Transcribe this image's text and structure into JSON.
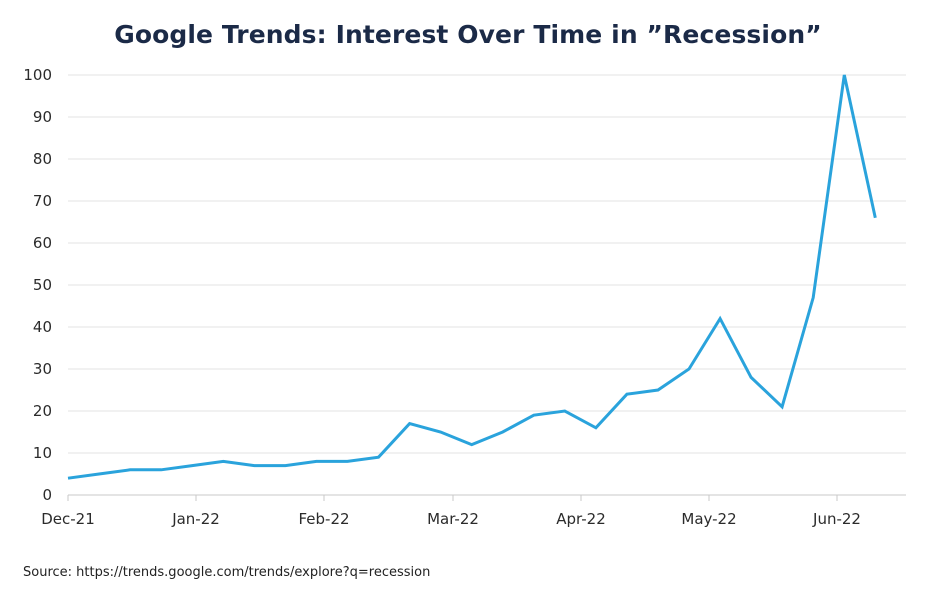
{
  "title": "Google Trends: Interest Over Time in ”Recession”",
  "source": "Source: https://trends.google.com/trends/explore?q=recession",
  "colors": {
    "line": "#2aa3dc",
    "grid": "#e3e3e3",
    "axis": "#c8c8c8",
    "title": "#1b2a47"
  },
  "chart_data": {
    "type": "line",
    "title": "Google Trends: Interest Over Time in ”Recession”",
    "xlabel": "",
    "ylabel": "",
    "ylim": [
      0,
      100
    ],
    "yticks": [
      0,
      10,
      20,
      30,
      40,
      50,
      60,
      70,
      80,
      90,
      100
    ],
    "xticks": [
      "Dec-21",
      "Jan-22",
      "Feb-22",
      "Mar-22",
      "Apr-22",
      "May-22",
      "Jun-22"
    ],
    "grid": true,
    "legend": "none",
    "x_unit": "week",
    "x": [
      "2021-12-05",
      "2021-12-12",
      "2021-12-19",
      "2021-12-26",
      "2022-01-02",
      "2022-01-09",
      "2022-01-16",
      "2022-01-23",
      "2022-01-30",
      "2022-02-06",
      "2022-02-13",
      "2022-02-20",
      "2022-02-27",
      "2022-03-06",
      "2022-03-13",
      "2022-03-20",
      "2022-03-27",
      "2022-04-03",
      "2022-04-10",
      "2022-04-17",
      "2022-04-24",
      "2022-05-01",
      "2022-05-08",
      "2022-05-15",
      "2022-05-22",
      "2022-05-29",
      "2022-06-05",
      "2022-06-12"
    ],
    "values": [
      4,
      5,
      6,
      6,
      7,
      8,
      7,
      7,
      8,
      8,
      9,
      17,
      15,
      12,
      15,
      19,
      20,
      16,
      24,
      25,
      30,
      42,
      28,
      21,
      47,
      100,
      66,
      null
    ]
  }
}
